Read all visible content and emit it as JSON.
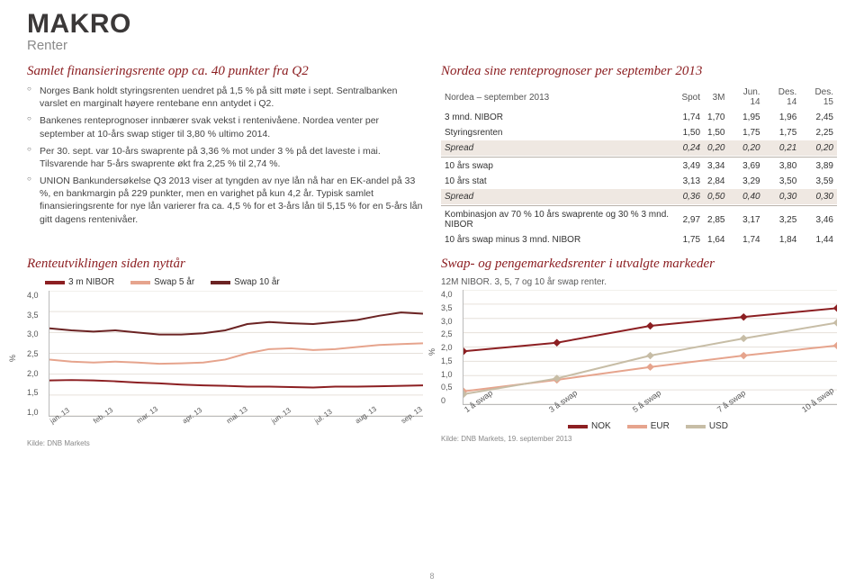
{
  "header": {
    "title": "MAKRO",
    "subtitle": "Renter"
  },
  "left": {
    "title": "Samlet finansieringsrente opp ca. 40 punkter fra Q2",
    "bullets": [
      "Norges Bank holdt styringsrenten uendret på 1,5 % på sitt møte i sept. Sentralbanken varslet en marginalt høyere rentebane enn antydet i Q2.",
      "Bankenes renteprognoser innbærer svak vekst i rentenivåene. Nordea venter per september at 10-års swap stiger til 3,80 % ultimo 2014.",
      "Per 30. sept. var 10-års swaprente på 3,36 % mot under 3 % på det laveste i mai. Tilsvarende har 5-års swaprente økt fra 2,25 % til 2,74 %.",
      "UNION Bankundersøkelse Q3 2013 viser at tyngden av nye lån nå har en EK-andel på 33 %, en bankmargin på 229 punkter, men en varighet på kun 4,2 år. Typisk samlet finansieringsrente for nye lån varierer fra ca. 4,5 % for et 3-års lån til 5,15 % for en 5-års lån gitt dagens rentenivåer."
    ]
  },
  "right": {
    "title": "Nordea sine renteprognoser per september 2013",
    "table": {
      "columns": [
        "Nordea – september 2013",
        "Spot",
        "3M",
        "Jun. 14",
        "Des. 14",
        "Des. 15"
      ],
      "rows": [
        {
          "cells": [
            "3 mnd. NIBOR",
            "1,74",
            "1,70",
            "1,95",
            "1,96",
            "2,45"
          ],
          "spread": false
        },
        {
          "cells": [
            "Styringsrenten",
            "1,50",
            "1,50",
            "1,75",
            "1,75",
            "2,25"
          ],
          "spread": false
        },
        {
          "cells": [
            "Spread",
            "0,24",
            "0,20",
            "0,20",
            "0,21",
            "0,20"
          ],
          "spread": true
        },
        {
          "cells": [
            "10 års swap",
            "3,49",
            "3,34",
            "3,69",
            "3,80",
            "3,89"
          ],
          "spread": false
        },
        {
          "cells": [
            "10 års stat",
            "3,13",
            "2,84",
            "3,29",
            "3,50",
            "3,59"
          ],
          "spread": false
        },
        {
          "cells": [
            "Spread",
            "0,36",
            "0,50",
            "0,40",
            "0,30",
            "0,30"
          ],
          "spread": true
        },
        {
          "cells": [
            "Kombinasjon av 70 % 10 års swaprente og 30 % 3 mnd. NIBOR",
            "2,97",
            "2,85",
            "3,17",
            "3,25",
            "3,46"
          ],
          "spread": false
        },
        {
          "cells": [
            "10 års swap minus 3 mnd. NIBOR",
            "1,75",
            "1,64",
            "1,74",
            "1,84",
            "1,44"
          ],
          "spread": false
        }
      ]
    }
  },
  "chart1": {
    "title": "Renteutviklingen siden nyttår",
    "type": "line",
    "legend": [
      {
        "label": "3 m NIBOR",
        "color": "#8c1f22"
      },
      {
        "label": "Swap 5 år",
        "color": "#e6a48d"
      },
      {
        "label": "Swap 10 år",
        "color": "#6b2323"
      }
    ],
    "ylim": [
      1.0,
      4.0
    ],
    "ytick_step": 0.5,
    "yticks": [
      "4,0",
      "3,5",
      "3,0",
      "2,5",
      "2,0",
      "1,5",
      "1,0"
    ],
    "xticks": [
      "jan. 13",
      "feb. 13",
      "mar. 13",
      "apr. 13",
      "mai. 13",
      "jun. 13",
      "jul. 13",
      "aug. 13",
      "sep. 13"
    ],
    "series": {
      "nibor": [
        1.85,
        1.86,
        1.85,
        1.83,
        1.8,
        1.78,
        1.75,
        1.73,
        1.72,
        1.7,
        1.7,
        1.69,
        1.68,
        1.7,
        1.7,
        1.71,
        1.72,
        1.73
      ],
      "swap5": [
        2.35,
        2.3,
        2.28,
        2.3,
        2.28,
        2.25,
        2.26,
        2.28,
        2.35,
        2.5,
        2.6,
        2.62,
        2.58,
        2.6,
        2.65,
        2.7,
        2.72,
        2.74
      ],
      "swap10": [
        3.1,
        3.05,
        3.02,
        3.05,
        3.0,
        2.95,
        2.95,
        2.98,
        3.05,
        3.2,
        3.25,
        3.22,
        3.2,
        3.25,
        3.3,
        3.4,
        3.48,
        3.45
      ]
    },
    "colors": {
      "nibor": "#8c1f22",
      "swap5": "#e6a48d",
      "swap10": "#6b2323"
    },
    "background": "#ffffff",
    "grid_color": "#e6e0da",
    "source": "Kilde: DNB Markets"
  },
  "chart2": {
    "title": "Swap- og pengemarkedsrenter i utvalgte markeder",
    "subcaption": "12M NIBOR. 3, 5, 7 og 10 år swap renter.",
    "type": "line",
    "legend": [
      {
        "label": "NOK",
        "color": "#8c1f22"
      },
      {
        "label": "EUR",
        "color": "#e6a48d"
      },
      {
        "label": "USD",
        "color": "#c7bda6"
      }
    ],
    "ylim": [
      0,
      4.0
    ],
    "ytick_step": 0.5,
    "yticks": [
      "4,0",
      "3,5",
      "3,0",
      "2,5",
      "2,0",
      "1,5",
      "1,0",
      "0,5",
      "0"
    ],
    "xticks": [
      "1 å swap",
      "3 å swap",
      "5 å swap",
      "7 å swap",
      "10 å swap"
    ],
    "series": {
      "nok": [
        1.85,
        2.15,
        2.74,
        3.05,
        3.36
      ],
      "eur": [
        0.45,
        0.85,
        1.3,
        1.7,
        2.05
      ],
      "usd": [
        0.35,
        0.9,
        1.7,
        2.3,
        2.85
      ]
    },
    "colors": {
      "nok": "#8c1f22",
      "eur": "#e6a48d",
      "usd": "#c7bda6"
    },
    "background": "#ffffff",
    "grid_color": "#e6e0da",
    "source": "Kilde: DNB Markets, 19. september 2013"
  },
  "page": "8"
}
